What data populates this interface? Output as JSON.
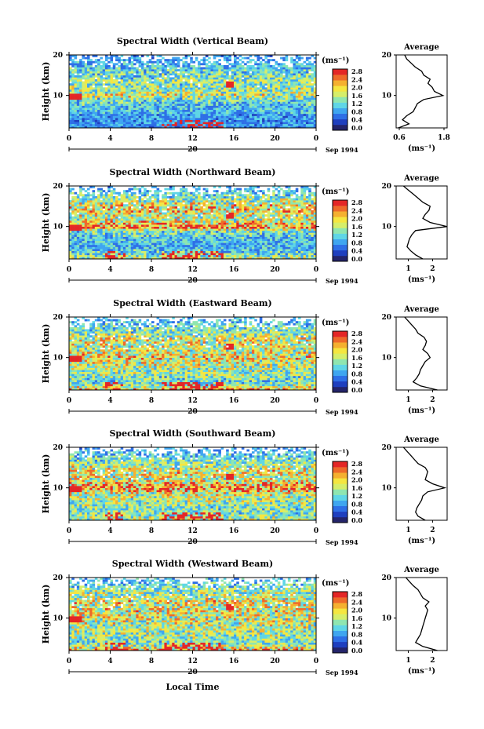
{
  "figure": {
    "xlabel": "Local Time",
    "date_tail": "Sep 1994",
    "day_label": "20",
    "x_ticks": [
      "0",
      "4",
      "8",
      "12",
      "16",
      "20",
      "0"
    ],
    "y_ticks": [
      "20",
      "10"
    ],
    "ylabel": "Height (km)",
    "unit_label": "(ms⁻¹)",
    "avg_title": "Average",
    "avg_xlabel": "(ms⁻¹)",
    "colorbar_ticks": [
      "2.8",
      "2.4",
      "2.0",
      "1.6",
      "1.2",
      "0.8",
      "0.4",
      "0.0"
    ],
    "colorscale": [
      "#24246a",
      "#1f3fbf",
      "#2e6fe6",
      "#3fa6f0",
      "#5fd6e6",
      "#8fe6b0",
      "#d6ee6a",
      "#f5e640",
      "#f5b030",
      "#ee6a2a",
      "#e42626"
    ]
  },
  "chart_data": [
    {
      "type": "heatmap",
      "title": "Spectral Width (Vertical Beam)",
      "xlabel": "Local Time",
      "ylabel": "Height (km)",
      "xlim": [
        0,
        24
      ],
      "ylim": [
        2,
        20
      ],
      "zlim": [
        0.0,
        2.8
      ],
      "avg_xtick_labels": [
        "0.6",
        "1.8"
      ],
      "avg_xlim": [
        0.6,
        1.8
      ],
      "average": {
        "height_km": [
          2,
          3,
          4,
          5,
          6,
          7,
          8,
          9,
          10,
          11,
          12,
          13,
          14,
          15,
          16,
          17,
          18,
          19,
          20
        ],
        "width_ms": [
          0.65,
          0.9,
          0.75,
          0.85,
          1.0,
          1.05,
          1.1,
          1.25,
          1.7,
          1.5,
          1.45,
          1.35,
          1.4,
          1.25,
          1.2,
          1.05,
          0.95,
          0.85,
          0.8
        ]
      }
    },
    {
      "type": "heatmap",
      "title": "Spectral Width (Northward Beam)",
      "xlabel": "Local Time",
      "ylabel": "Height (km)",
      "xlim": [
        0,
        24
      ],
      "ylim": [
        2,
        20
      ],
      "zlim": [
        0.0,
        2.8
      ],
      "avg_xtick_labels": [
        "1",
        "2"
      ],
      "avg_xlim": [
        0.5,
        2.6
      ],
      "average": {
        "height_km": [
          2,
          3,
          4,
          5,
          6,
          7,
          8,
          9,
          10,
          11,
          12,
          13,
          14,
          15,
          16,
          17,
          18,
          19,
          20
        ],
        "width_ms": [
          1.6,
          1.3,
          1.1,
          0.95,
          1.0,
          1.05,
          1.15,
          1.3,
          2.6,
          1.9,
          1.6,
          1.7,
          1.85,
          1.9,
          1.6,
          1.4,
          1.2,
          1.0,
          0.8
        ]
      }
    },
    {
      "type": "heatmap",
      "title": "Spectral Width (Eastward Beam)",
      "xlabel": "Local Time",
      "ylabel": "Height (km)",
      "xlim": [
        0,
        24
      ],
      "ylim": [
        2,
        20
      ],
      "zlim": [
        0.0,
        2.8
      ],
      "avg_xtick_labels": [
        "1",
        "2"
      ],
      "avg_xlim": [
        0.5,
        2.6
      ],
      "average": {
        "height_km": [
          2,
          3,
          4,
          5,
          6,
          7,
          8,
          9,
          10,
          11,
          12,
          13,
          14,
          15,
          16,
          17,
          18,
          19,
          20
        ],
        "width_ms": [
          2.2,
          1.5,
          1.2,
          1.35,
          1.45,
          1.5,
          1.6,
          1.7,
          1.9,
          1.8,
          1.6,
          1.7,
          1.75,
          1.65,
          1.4,
          1.3,
          1.15,
          1.0,
          0.85
        ]
      }
    },
    {
      "type": "heatmap",
      "title": "Spectral Width (Southward Beam)",
      "xlabel": "Local Time",
      "ylabel": "Height (km)",
      "xlim": [
        0,
        24
      ],
      "ylim": [
        2,
        20
      ],
      "zlim": [
        0.0,
        2.8
      ],
      "avg_xtick_labels": [
        "1",
        "2"
      ],
      "avg_xlim": [
        0.5,
        2.6
      ],
      "average": {
        "height_km": [
          2,
          3,
          4,
          5,
          6,
          7,
          8,
          9,
          10,
          11,
          12,
          13,
          14,
          15,
          16,
          17,
          18,
          19,
          20
        ],
        "width_ms": [
          1.7,
          1.4,
          1.3,
          1.35,
          1.45,
          1.55,
          1.6,
          1.8,
          2.5,
          2.0,
          1.7,
          1.75,
          1.8,
          1.7,
          1.4,
          1.25,
          1.1,
          0.95,
          0.8
        ]
      }
    },
    {
      "type": "heatmap",
      "title": "Spectral Width (Westward Beam)",
      "xlabel": "Local Time",
      "ylabel": "Height (km)",
      "xlim": [
        0,
        24
      ],
      "ylim": [
        2,
        20
      ],
      "zlim": [
        0.0,
        2.8
      ],
      "avg_xtick_labels": [
        "1",
        "2"
      ],
      "avg_xlim": [
        0.5,
        2.6
      ],
      "average": {
        "height_km": [
          2,
          3,
          4,
          5,
          6,
          7,
          8,
          9,
          10,
          11,
          12,
          13,
          14,
          15,
          16,
          17,
          18,
          19,
          20
        ],
        "width_ms": [
          2.2,
          1.6,
          1.3,
          1.4,
          1.5,
          1.55,
          1.6,
          1.65,
          1.7,
          1.75,
          1.8,
          1.7,
          1.85,
          1.6,
          1.5,
          1.4,
          1.2,
          1.05,
          0.9
        ]
      }
    }
  ]
}
